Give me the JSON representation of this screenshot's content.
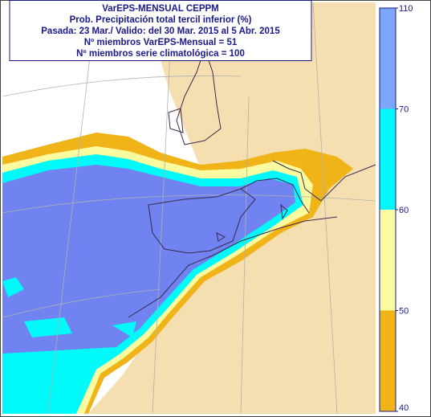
{
  "header": {
    "lines": [
      "VarEPS-MENSUAL CEPPM",
      "Prob. Precipitación total tercil inferior (%)",
      "Pasada: 23 Mar./ Valido: del 30 Mar. 2015 al 5 Abr. 2015",
      "Nº miembros VarEPS-Mensual = 51",
      "Nº miembros serie climatológica = 100"
    ]
  },
  "legend": {
    "bounds": [
      40,
      50,
      60,
      70,
      110
    ],
    "colors": [
      "#f0b418",
      "#fafaa0",
      "#00fafa",
      "#7ea6f8"
    ]
  }
}
